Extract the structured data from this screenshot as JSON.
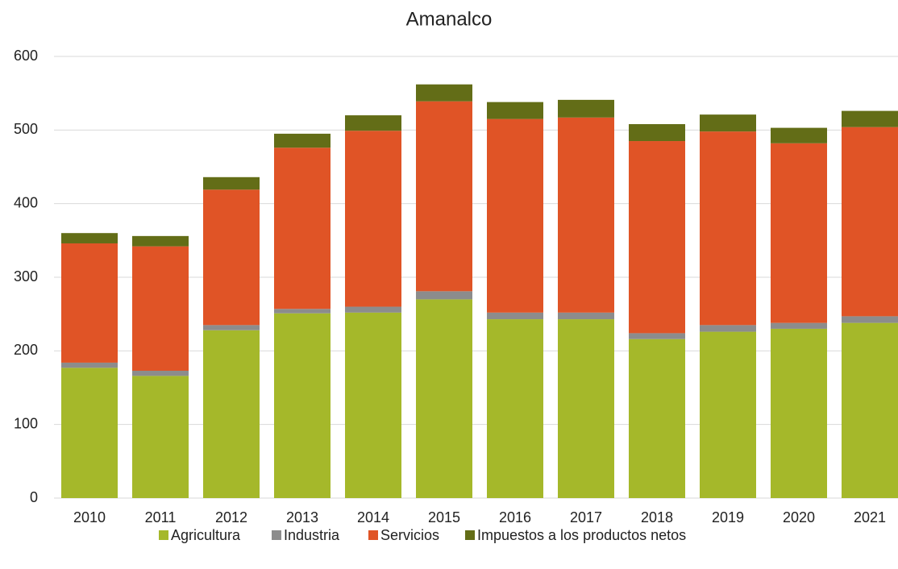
{
  "chart_data": {
    "type": "stacked_bar",
    "title": "Amanalco",
    "categories": [
      "2010",
      "2011",
      "2012",
      "2013",
      "2014",
      "2015",
      "2016",
      "2017",
      "2018",
      "2019",
      "2020",
      "2021"
    ],
    "series": [
      {
        "name": "Agricultura",
        "color": "#a5b82a",
        "values": [
          177,
          166,
          228,
          251,
          252,
          270,
          243,
          243,
          216,
          226,
          230,
          238
        ]
      },
      {
        "name": "Industria",
        "color": "#8c8c8c",
        "values": [
          7,
          7,
          7,
          6,
          8,
          11,
          9,
          9,
          8,
          9,
          8,
          9
        ]
      },
      {
        "name": "Servicios",
        "color": "#e05426",
        "values": [
          162,
          169,
          184,
          219,
          239,
          258,
          263,
          265,
          261,
          263,
          244,
          257
        ]
      },
      {
        "name": "Impuestos a los productos netos",
        "color": "#636d17",
        "values": [
          14,
          14,
          17,
          19,
          21,
          23,
          23,
          24,
          23,
          23,
          21,
          22
        ]
      }
    ],
    "ylim": [
      0,
      600
    ],
    "yticks": [
      0,
      100,
      200,
      300,
      400,
      500,
      600
    ],
    "grid": true,
    "legend": "bottom"
  }
}
